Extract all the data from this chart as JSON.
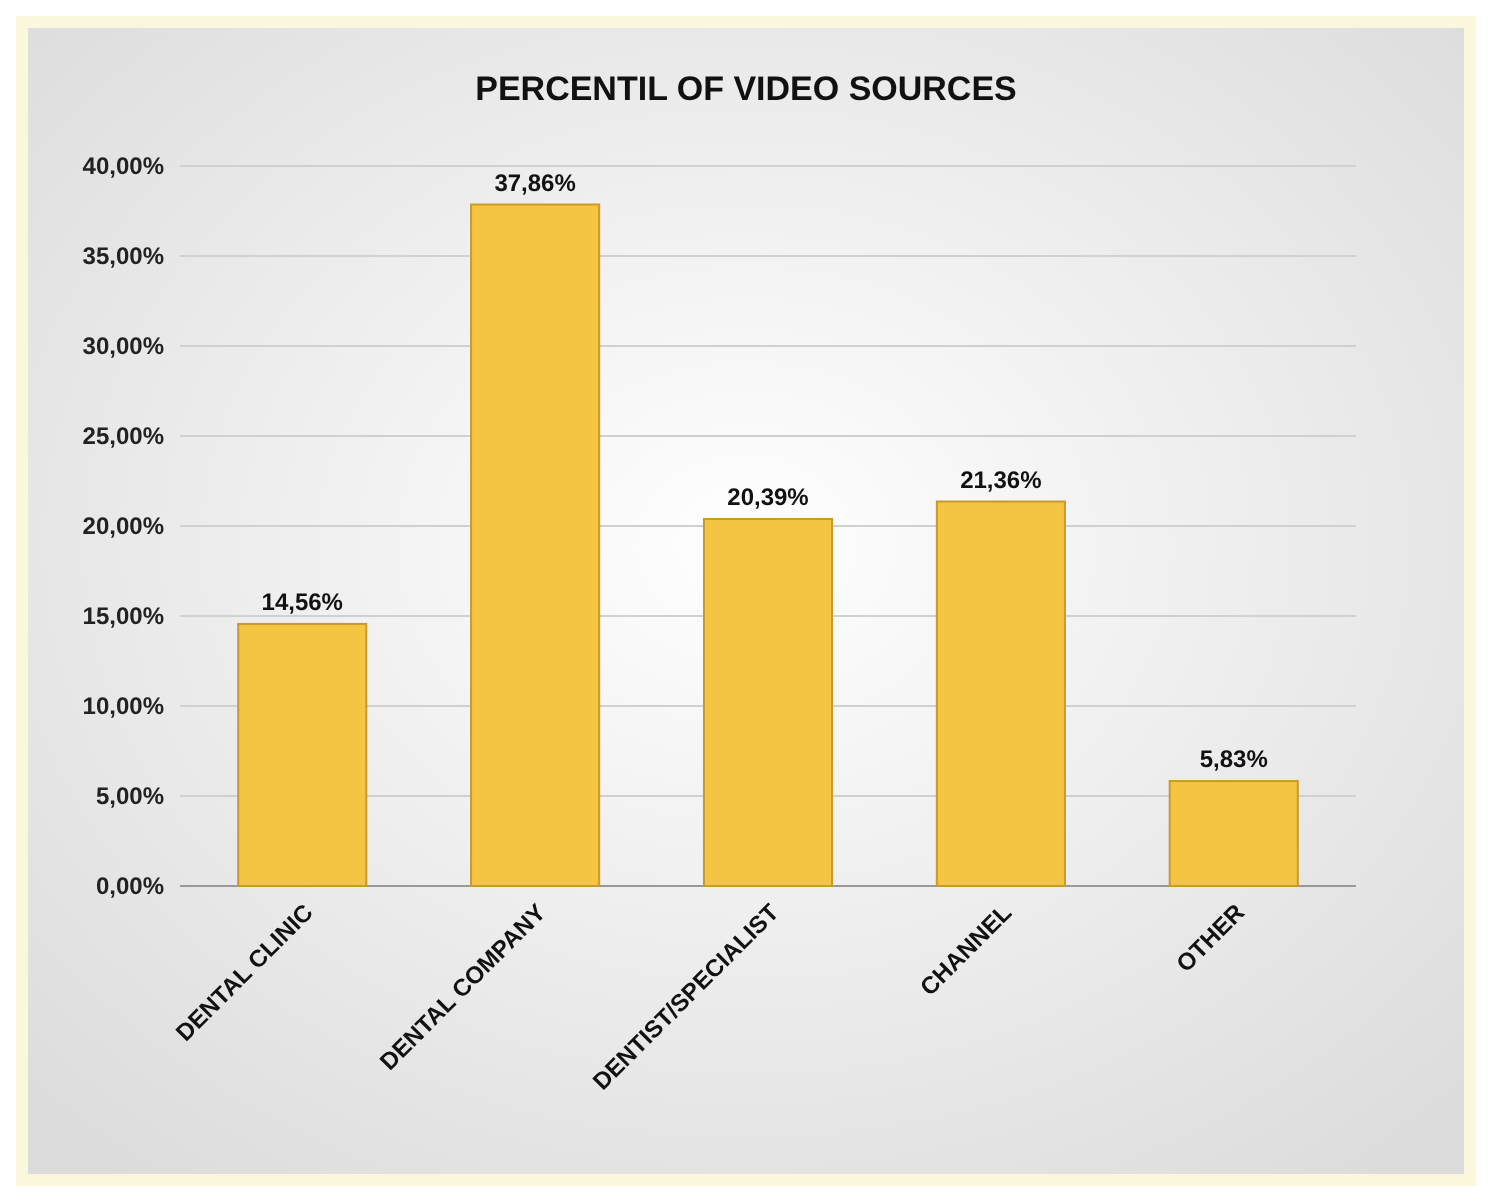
{
  "chart_data": {
    "type": "bar",
    "title": "PERCENTIL OF VIDEO SOURCES",
    "categories": [
      "DENTAL CLINIC",
      "DENTAL COMPANY",
      "DENTIST/SPECIALIST",
      "CHANNEL",
      "OTHER"
    ],
    "values": [
      14.56,
      37.86,
      20.39,
      21.36,
      5.83
    ],
    "value_labels": [
      "14,56%",
      "37,86%",
      "20,39%",
      "21,36%",
      "5,83%"
    ],
    "color": "#f4c542",
    "ylim": [
      0,
      40
    ],
    "yticks": [
      {
        "value": 0,
        "label": "0,00%"
      },
      {
        "value": 5,
        "label": "5,00%"
      },
      {
        "value": 10,
        "label": "10,00%"
      },
      {
        "value": 15,
        "label": "15,00%"
      },
      {
        "value": 20,
        "label": "20,00%"
      },
      {
        "value": 25,
        "label": "25,00%"
      },
      {
        "value": 30,
        "label": "30,00%"
      },
      {
        "value": 35,
        "label": "35,00%"
      },
      {
        "value": 40,
        "label": "40,00%"
      }
    ],
    "grid": "y"
  }
}
